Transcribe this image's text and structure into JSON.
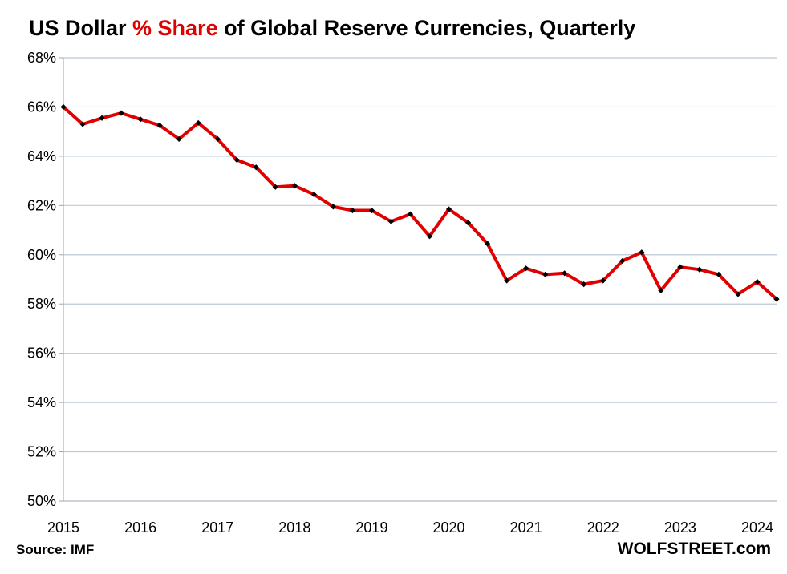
{
  "chart_data": {
    "type": "line",
    "title_parts": [
      {
        "text": "US Dollar ",
        "color": "#000000"
      },
      {
        "text": "% Share",
        "color": "#e00000"
      },
      {
        "text": " of Global Reserve Currencies, Quarterly",
        "color": "#000000"
      }
    ],
    "xlabel": "",
    "ylabel": "",
    "ylim": [
      50,
      68
    ],
    "xlim": [
      2015.0,
      2024.25
    ],
    "y_ticks": [
      50,
      52,
      54,
      56,
      58,
      60,
      62,
      64,
      66,
      68
    ],
    "y_tick_labels": [
      "50%",
      "52%",
      "54%",
      "56%",
      "58%",
      "60%",
      "62%",
      "64%",
      "66%",
      "68%"
    ],
    "x_ticks": [
      2015,
      2016,
      2017,
      2018,
      2019,
      2020,
      2021,
      2022,
      2023,
      2024
    ],
    "x_tick_labels": [
      "2015",
      "2016",
      "2017",
      "2018",
      "2019",
      "2020",
      "2021",
      "2022",
      "2023",
      "2024"
    ],
    "grid": true,
    "legend": "none",
    "series": [
      {
        "line_color": "#e00000",
        "marker_color": "#000000",
        "x": [
          2015.0,
          2015.25,
          2015.5,
          2015.75,
          2016.0,
          2016.25,
          2016.5,
          2016.75,
          2017.0,
          2017.25,
          2017.5,
          2017.75,
          2018.0,
          2018.25,
          2018.5,
          2018.75,
          2019.0,
          2019.25,
          2019.5,
          2019.75,
          2020.0,
          2020.25,
          2020.5,
          2020.75,
          2021.0,
          2021.25,
          2021.5,
          2021.75,
          2022.0,
          2022.25,
          2022.5,
          2022.75,
          2023.0,
          2023.25,
          2023.5,
          2023.75,
          2024.0,
          2024.25
        ],
        "values": [
          66.0,
          65.3,
          65.55,
          65.75,
          65.5,
          65.25,
          64.7,
          65.35,
          64.7,
          63.85,
          63.55,
          62.75,
          62.8,
          62.45,
          61.95,
          61.8,
          61.8,
          61.35,
          61.65,
          60.75,
          61.85,
          61.3,
          60.45,
          58.95,
          59.45,
          59.2,
          59.25,
          58.8,
          58.95,
          59.75,
          60.1,
          58.55,
          59.5,
          59.4,
          59.2,
          58.4,
          58.9,
          58.2
        ]
      }
    ]
  },
  "footer": {
    "source": "Source: IMF",
    "brand": "WOLFSTREET.com"
  }
}
